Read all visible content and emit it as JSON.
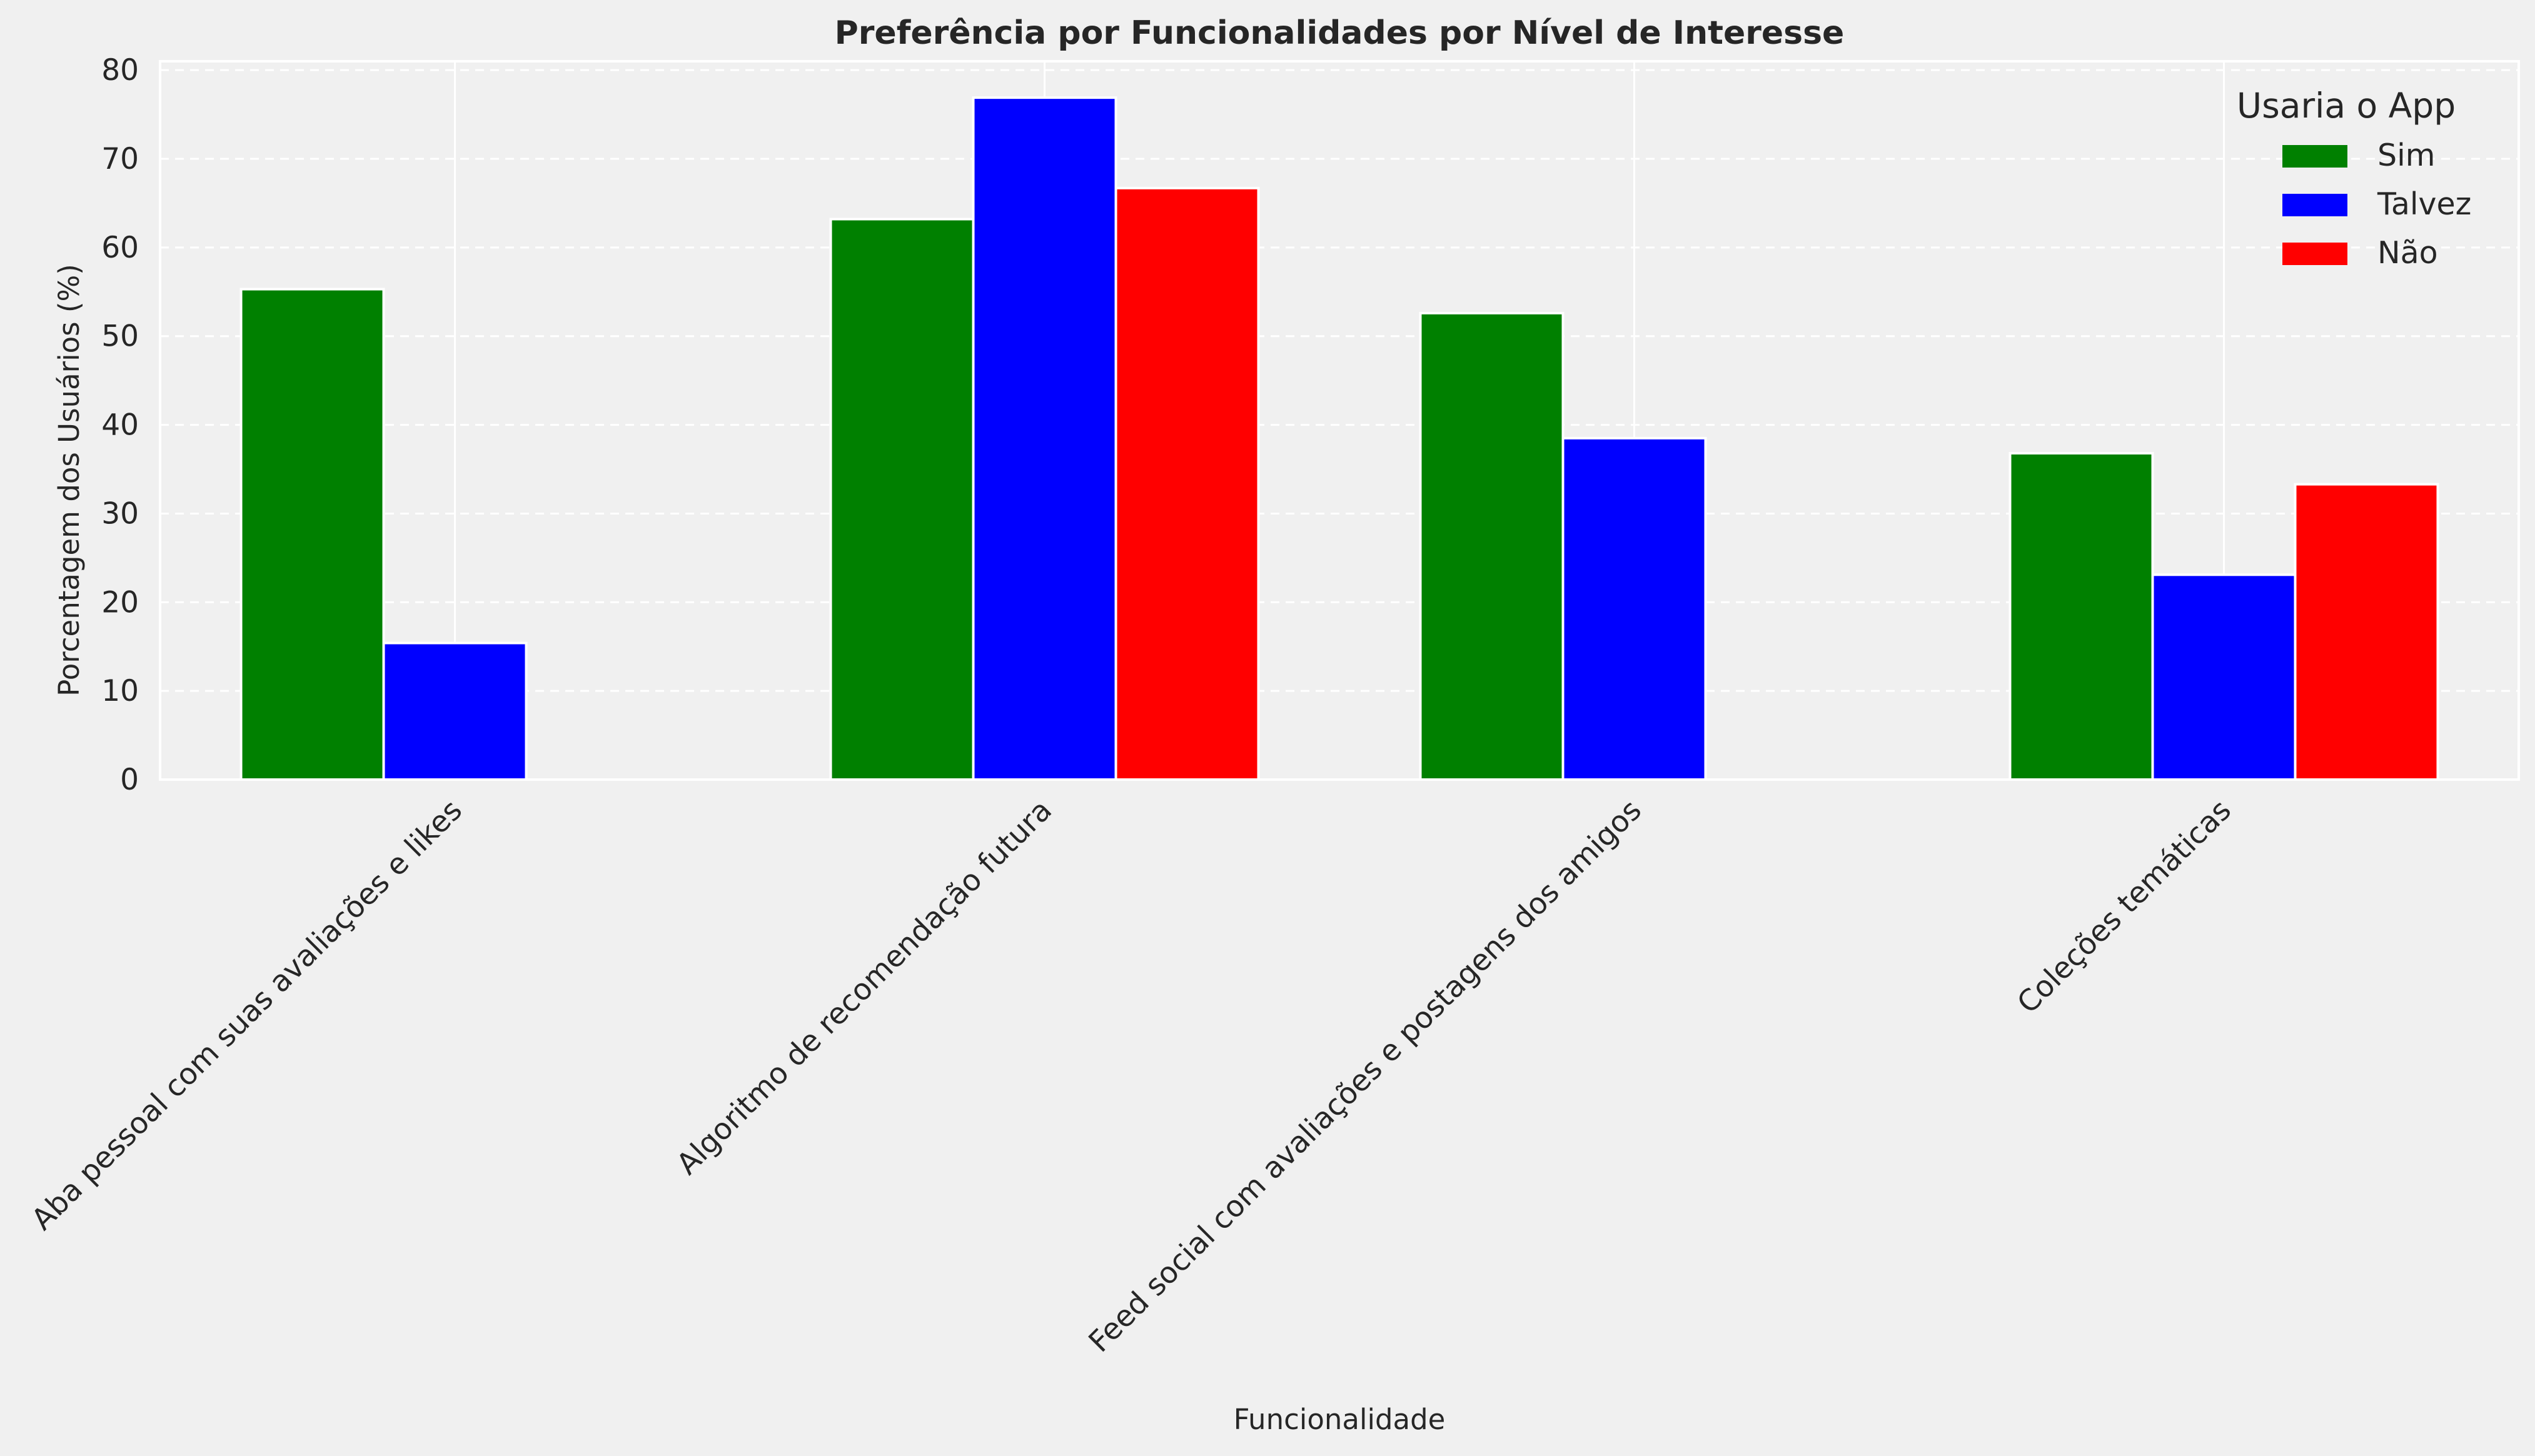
{
  "chart_data": {
    "type": "bar",
    "title": "Preferência por Funcionalidades por Nível de Interesse",
    "xlabel": "Funcionalidade",
    "ylabel": "Porcentagem dos Usuários (%)",
    "ylim": [
      0,
      81
    ],
    "yticks": [
      0,
      10,
      20,
      30,
      40,
      50,
      60,
      70,
      80
    ],
    "grid": true,
    "legend": {
      "title": "Usaria o App",
      "placement": "top-right"
    },
    "categories": [
      "Aba pessoal com suas avaliações e likes",
      "Algoritmo de recomendação futura",
      "Feed social com avaliações e postagens dos amigos",
      "Coleções temáticas"
    ],
    "series": [
      {
        "name": "Sim",
        "color": "#008000",
        "values": [
          55.3,
          63.2,
          52.6,
          36.8
        ]
      },
      {
        "name": "Talvez",
        "color": "#0000ff",
        "values": [
          15.4,
          76.9,
          38.5,
          23.1
        ]
      },
      {
        "name": "Não",
        "color": "#ff0000",
        "values": [
          0,
          66.7,
          0,
          33.3
        ]
      }
    ]
  }
}
